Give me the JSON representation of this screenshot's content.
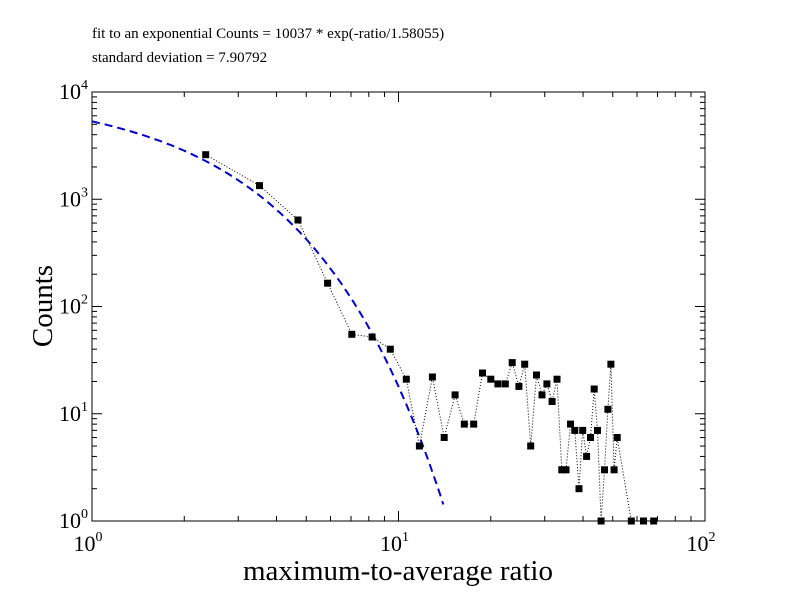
{
  "annotations": {
    "fit": "fit to an exponential Counts = 10037 * exp(-ratio/1.58055)",
    "stddev": "standard deviation = 7.90792"
  },
  "chart_data": {
    "type": "scatter",
    "xlabel": "maximum-to-average ratio",
    "ylabel": "Counts",
    "xscale": "log",
    "yscale": "log",
    "xlim": [
      1,
      100
    ],
    "ylim": [
      1,
      10000
    ],
    "grid": false,
    "legend": "none",
    "x_tick_labels": [
      {
        "base": "10",
        "exp": "0",
        "value": 1
      },
      {
        "base": "10",
        "exp": "1",
        "value": 10
      },
      {
        "base": "10",
        "exp": "2",
        "value": 100
      }
    ],
    "y_tick_labels": [
      {
        "base": "10",
        "exp": "0",
        "value": 1
      },
      {
        "base": "10",
        "exp": "1",
        "value": 10
      },
      {
        "base": "10",
        "exp": "2",
        "value": 100
      },
      {
        "base": "10",
        "exp": "3",
        "value": 1000
      },
      {
        "base": "10",
        "exp": "4",
        "value": 10000
      }
    ],
    "series": [
      {
        "style": "black squares joined by dotted line",
        "color": "#000000",
        "x": [
          2.35,
          3.52,
          4.7,
          5.87,
          7.04,
          8.2,
          9.4,
          10.6,
          11.7,
          12.9,
          14.1,
          15.3,
          16.4,
          17.6,
          18.8,
          20.0,
          21.1,
          22.3,
          23.5,
          24.7,
          25.8,
          27.0,
          28.2,
          29.4,
          30.5,
          31.7,
          32.9,
          34.1,
          35.2,
          36.4,
          37.6,
          38.8,
          39.9,
          41.1,
          42.3,
          43.5,
          44.6,
          45.8,
          47.0,
          48.2,
          49.3,
          50.5,
          51.7,
          57.5,
          63.0,
          68.0
        ],
        "y": [
          2600,
          1340,
          640,
          165,
          55,
          52,
          40,
          21,
          5,
          22,
          6,
          15,
          8,
          8,
          24,
          21,
          19,
          19,
          30,
          18,
          29,
          5,
          23,
          15,
          19,
          13,
          21,
          3,
          3,
          8,
          7,
          2,
          7,
          4,
          6,
          17,
          7,
          1,
          3,
          11,
          29,
          3,
          6,
          1,
          1,
          1
        ]
      },
      {
        "style": "blue dashed exponential fit",
        "color": "#0000cc",
        "x_start": 1,
        "x_end": 14,
        "amplitude": 10037,
        "scale": 1.58055
      }
    ]
  }
}
